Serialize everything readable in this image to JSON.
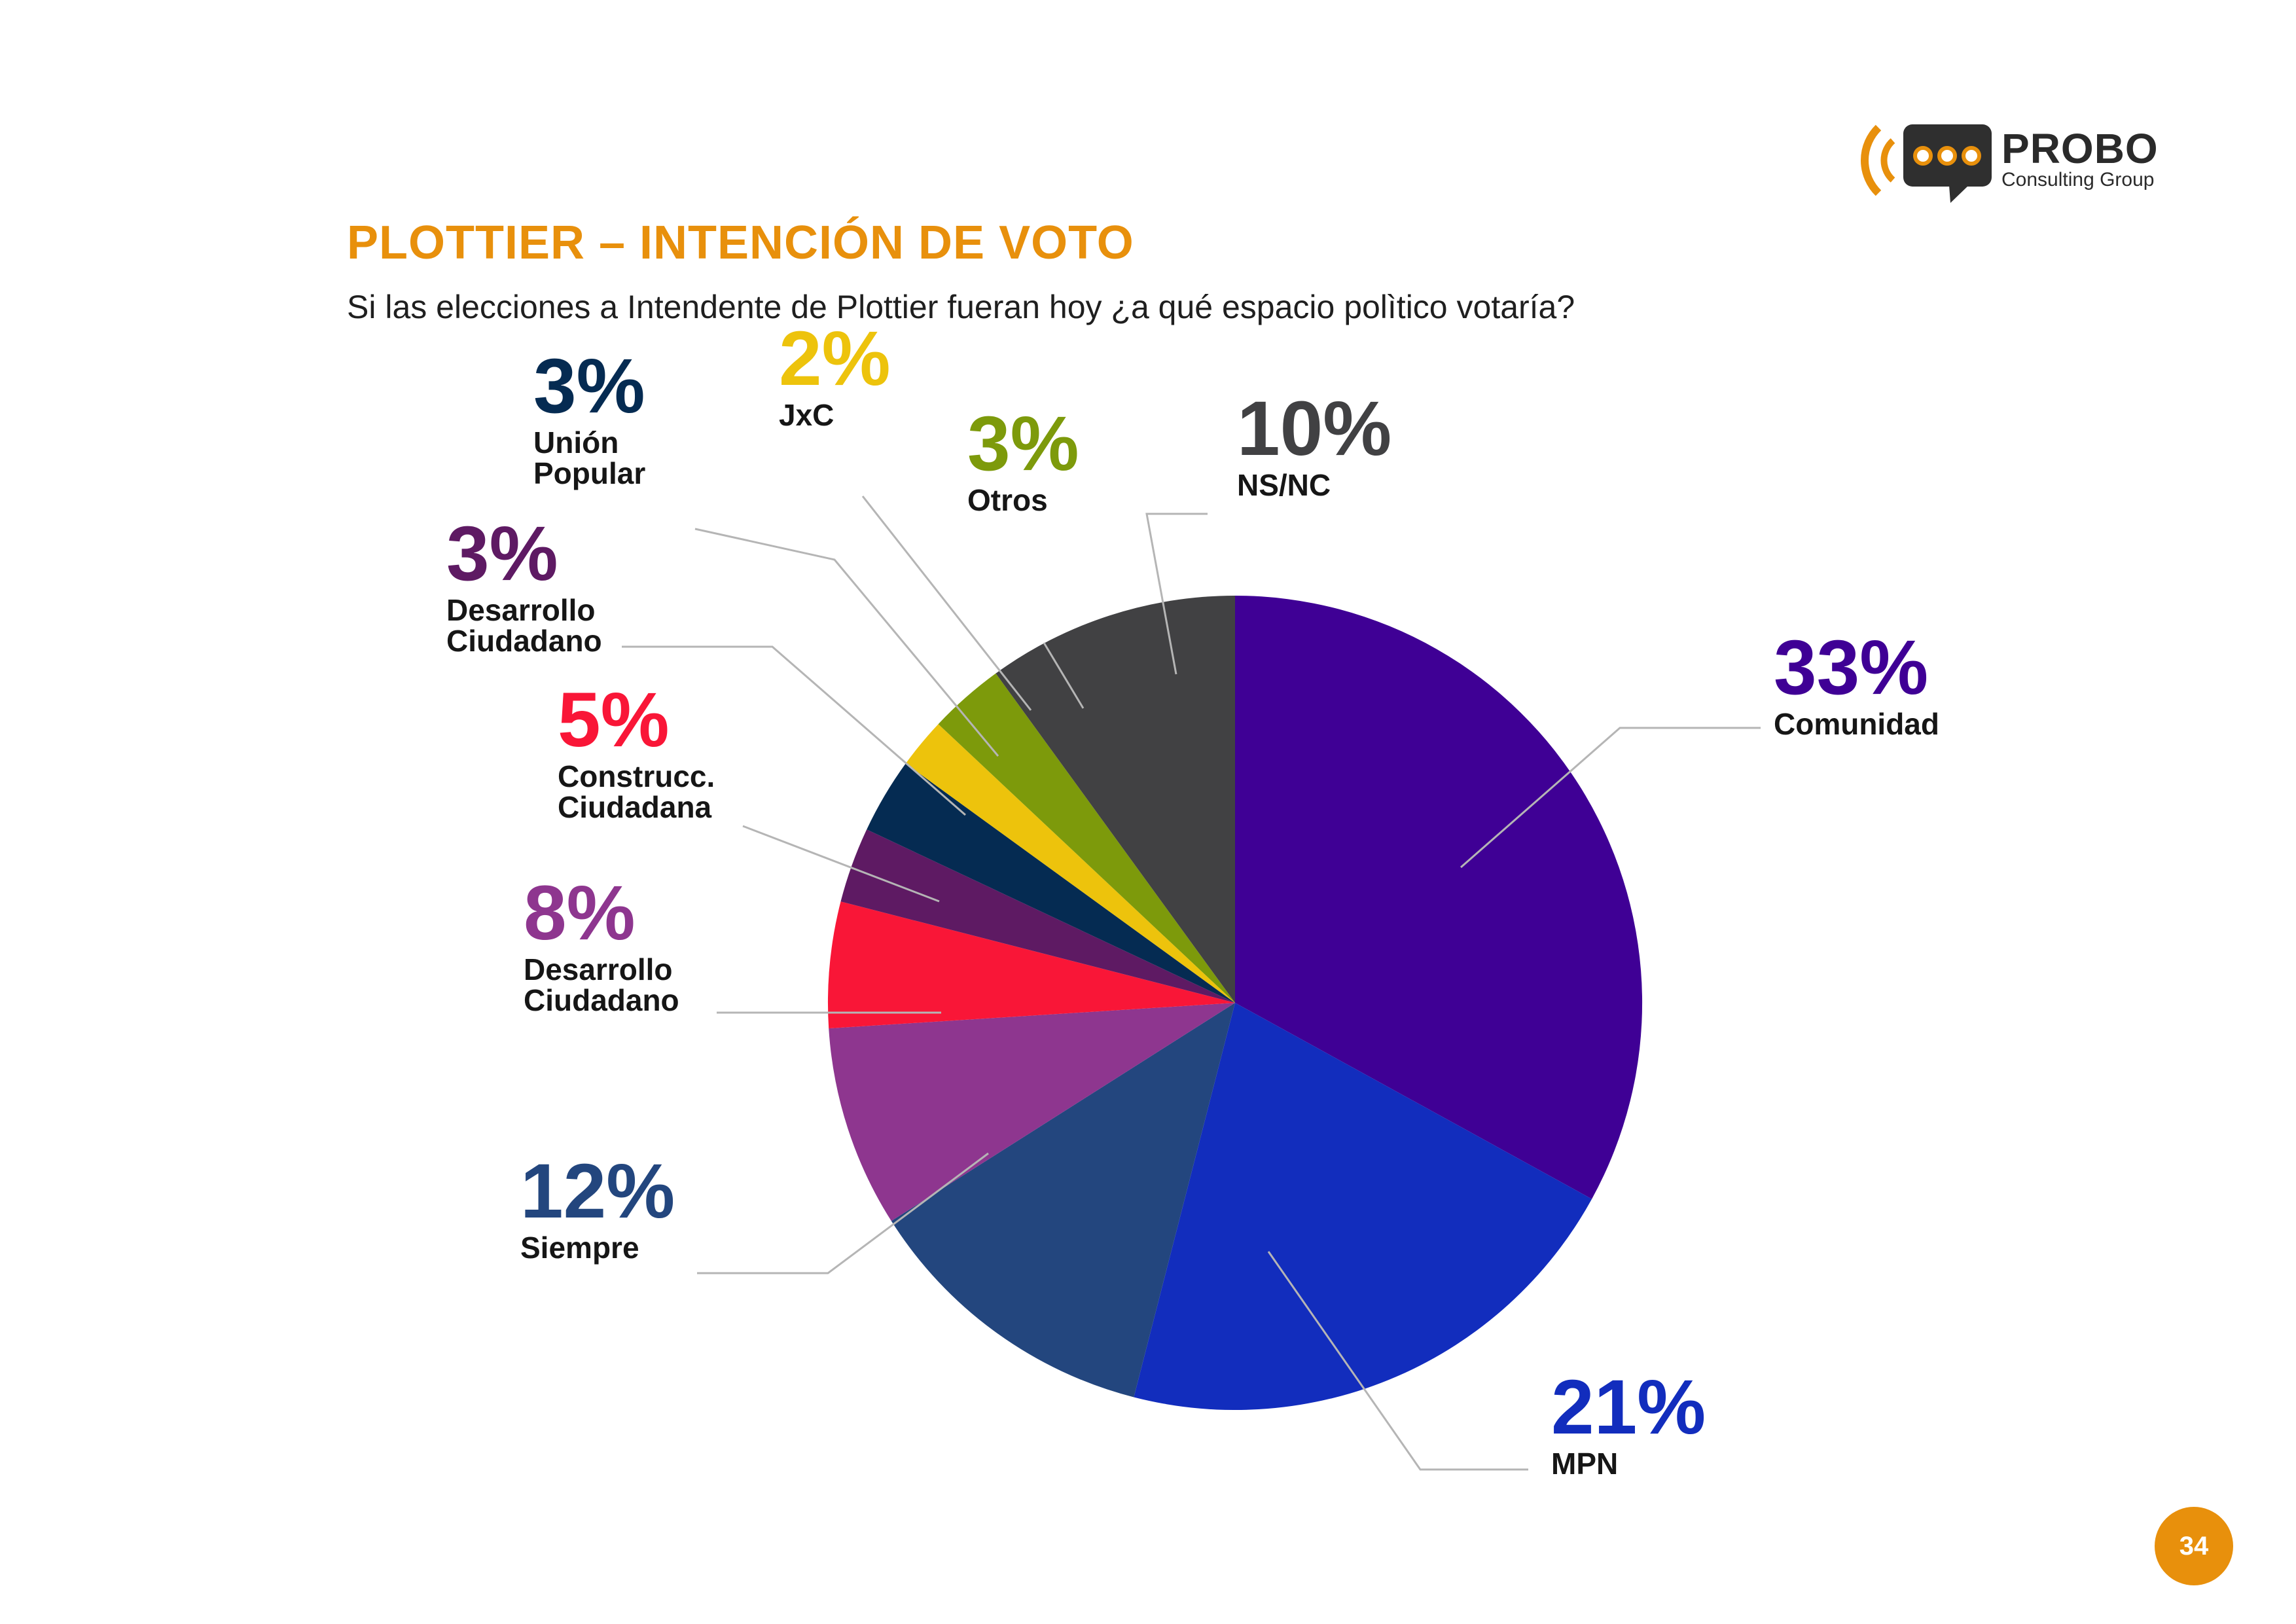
{
  "header": {
    "title": "PLOTTIER – INTENCIÓN DE VOTO",
    "subtitle": "Si las elecciones a Intendente de Plottier fueran hoy ¿a qué espacio polìtico votaría?"
  },
  "brand": {
    "name": "PROBO",
    "tagline": "Consulting Group",
    "icon": "speech-bubble-signal-icon",
    "accent_color": "#E8900C",
    "dark_color": "#2F2F2F"
  },
  "page": {
    "number": "34"
  },
  "chart_data": {
    "type": "pie",
    "start": "top, clockwise",
    "legend": "none (direct labels with leader lines)",
    "slices": [
      {
        "label": "Comunidad",
        "value": 33,
        "value_label": "33%",
        "color": "#3F0095",
        "label_lines": [
          "Comunidad"
        ]
      },
      {
        "label": "MPN",
        "value": 21,
        "value_label": "21%",
        "color": "#122DBD",
        "label_lines": [
          "MPN"
        ]
      },
      {
        "label": "Siempre",
        "value": 12,
        "value_label": "12%",
        "color": "#23467E",
        "label_lines": [
          "Siempre"
        ]
      },
      {
        "label": "Desarrollo Ciudadano",
        "value": 8,
        "value_label": "8%",
        "color": "#8E368F",
        "label_lines": [
          "Desarrollo",
          "Ciudadano"
        ]
      },
      {
        "label": "Construcc. Ciudadana",
        "value": 5,
        "value_label": "5%",
        "color": "#F91637",
        "label_lines": [
          "Construcc.",
          "Ciudadana"
        ]
      },
      {
        "label": "Desarrollo Ciudadano",
        "value": 3,
        "value_label": "3%",
        "color": "#5E1A63",
        "label_lines": [
          "Desarrollo",
          "Ciudadano"
        ]
      },
      {
        "label": "Unión Popular",
        "value": 3,
        "value_label": "3%",
        "color": "#052B52",
        "label_lines": [
          "Unión",
          "Popular"
        ]
      },
      {
        "label": "JxC",
        "value": 2,
        "value_label": "2%",
        "color": "#EDC30C",
        "label_lines": [
          "JxC"
        ]
      },
      {
        "label": "Otros",
        "value": 3,
        "value_label": "3%",
        "color": "#7D9A0B",
        "label_lines": [
          "Otros"
        ]
      },
      {
        "label": "NS/NC",
        "value": 10,
        "value_label": "10%",
        "color": "#414143",
        "label_lines": [
          "NS/NC"
        ]
      }
    ]
  }
}
